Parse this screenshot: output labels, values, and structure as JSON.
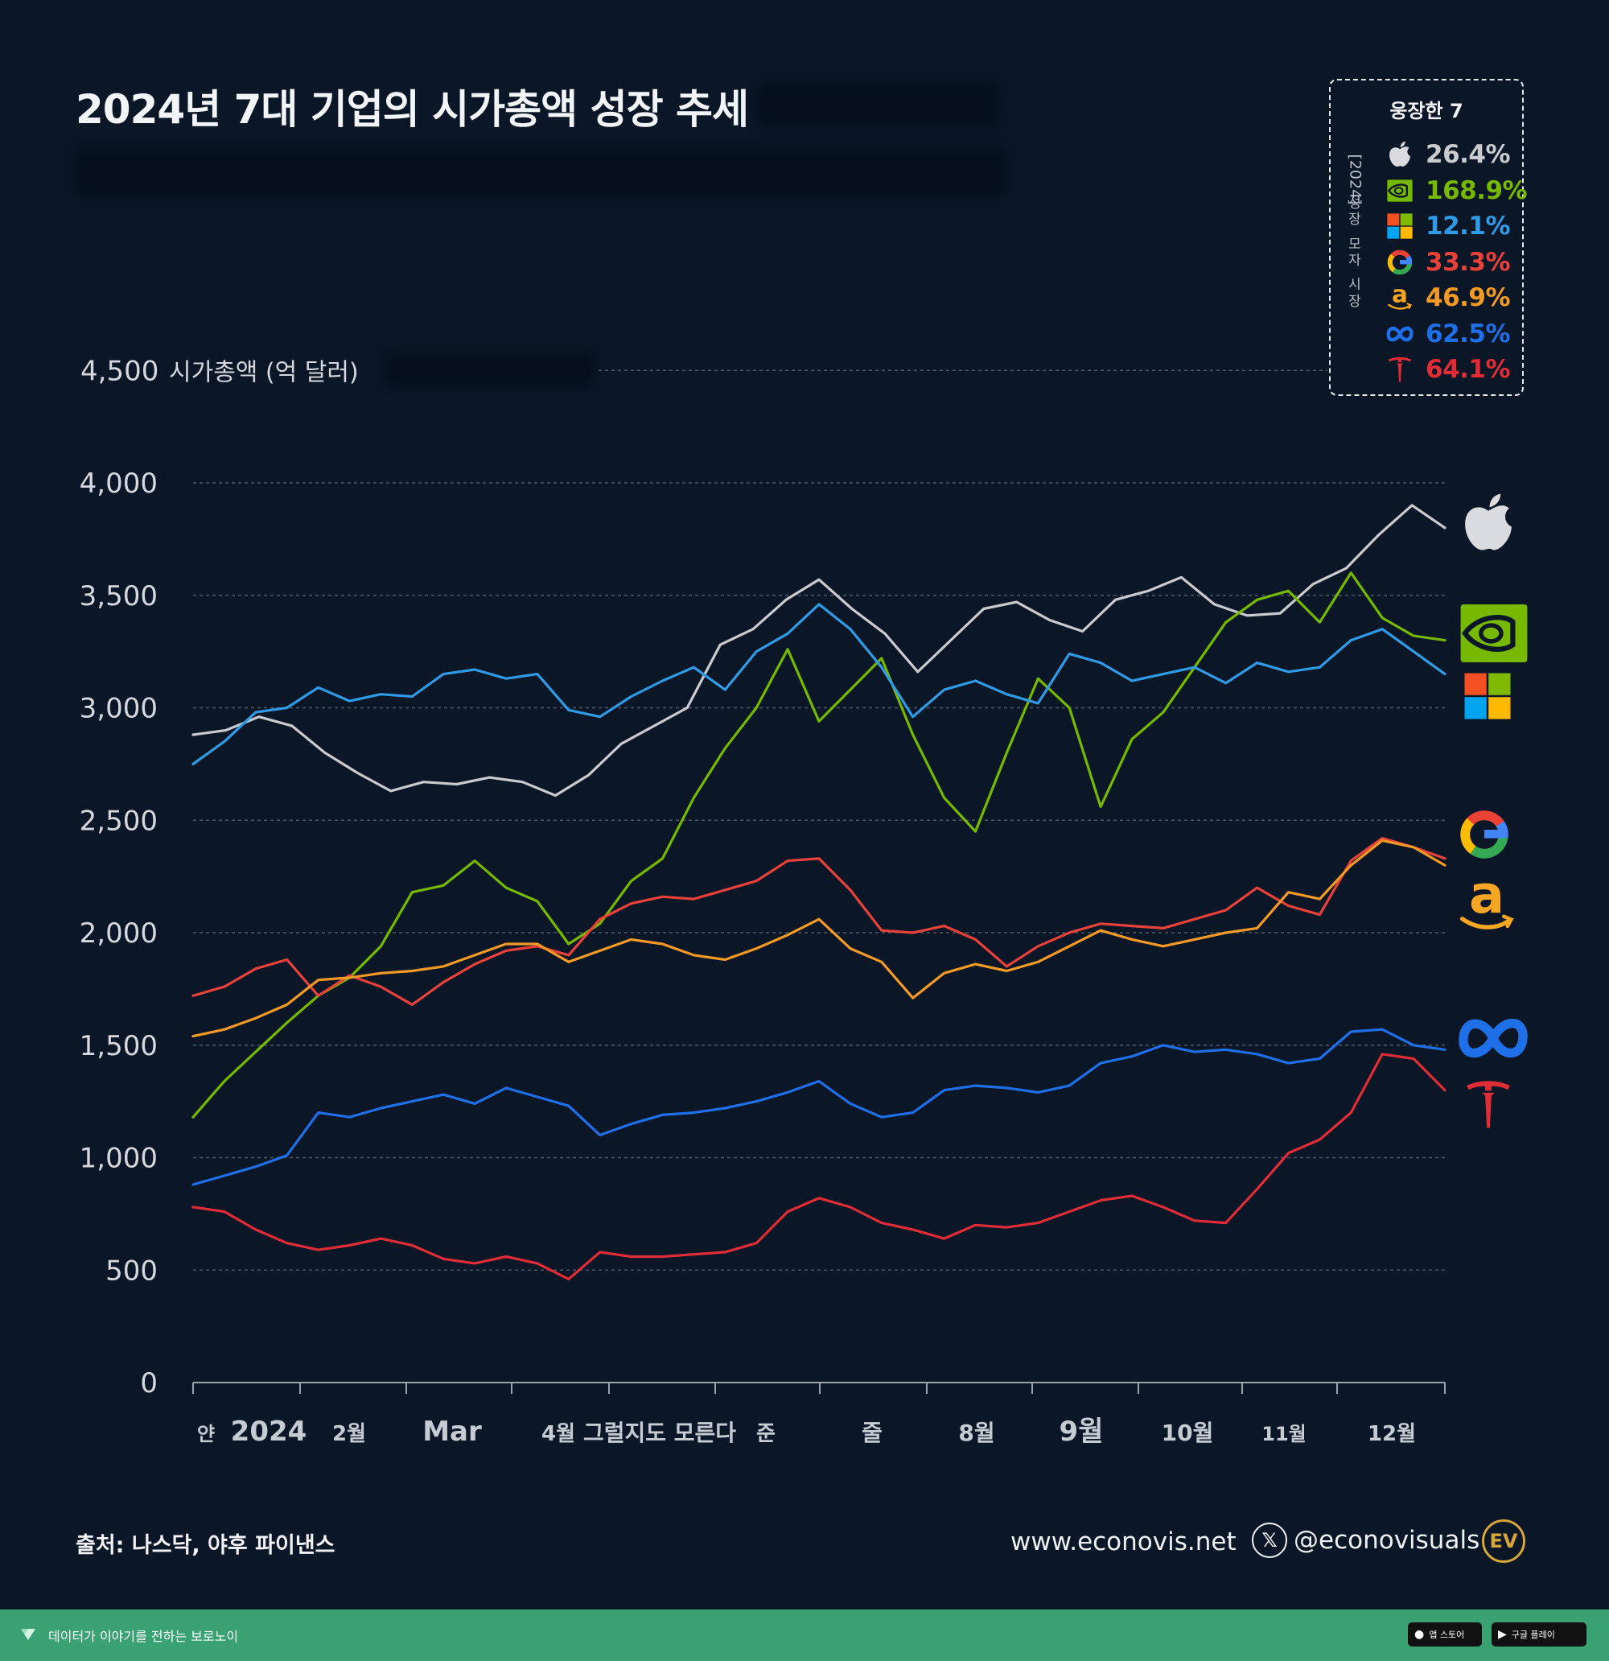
{
  "title": "2024년 7대 기업의 시가총액 성장 추세",
  "legend": {
    "title": "웅장한 7",
    "side_year": "[2024]",
    "side_words": [
      "성장",
      "모자",
      "시장"
    ],
    "items": [
      {
        "icon": "apple-icon",
        "value": "26.4%",
        "color": "#c9cbcf"
      },
      {
        "icon": "nvidia-icon",
        "value": "168.9%",
        "color": "#76b900"
      },
      {
        "icon": "microsoft-icon",
        "value": "12.1%",
        "color": "#2f9be6"
      },
      {
        "icon": "google-icon",
        "value": "33.3%",
        "color": "#e8413a"
      },
      {
        "icon": "amazon-icon",
        "value": "46.9%",
        "color": "#f39a26"
      },
      {
        "icon": "meta-icon",
        "value": "62.5%",
        "color": "#1e6fe8"
      },
      {
        "icon": "tesla-icon",
        "value": "64.1%",
        "color": "#e02c36"
      }
    ]
  },
  "footer": {
    "source": "출처: 나스닥, 야후 파이낸스",
    "website": "www.econovis.net",
    "x_glyph": "𝕏",
    "handle": "@econovisuals",
    "logo": "EV"
  },
  "bottombar": {
    "slogan": "데이터가 이야기를 전하는 보로노이",
    "badges": [
      "앱 스토어",
      "구글 플레이"
    ]
  },
  "chart_data": {
    "type": "line",
    "ylabel": "시가총액 (억 달러)",
    "ylim": [
      0,
      4500
    ],
    "yticks": [
      0,
      500,
      1000,
      1500,
      2000,
      2500,
      3000,
      3500,
      4000,
      4500
    ],
    "ytick_labels": [
      "0",
      "500",
      "1,000",
      "1,500",
      "2,000",
      "2,500",
      "3,000",
      "3,500",
      "4,000",
      "4,500"
    ],
    "x_tick_labels": [
      "얀",
      "2024",
      "2월",
      "Mar",
      "4월",
      "그럴지도 모른다",
      "준",
      "줄",
      "8월",
      "9월",
      "10월",
      "11월",
      "12월"
    ],
    "grid": true,
    "series": [
      {
        "name": "Apple",
        "icon": "apple-icon",
        "color": "#c9cbcf",
        "values": [
          2880,
          2900,
          2960,
          2920,
          2800,
          2710,
          2630,
          2670,
          2660,
          2690,
          2670,
          2610,
          2700,
          2840,
          2920,
          3000,
          3280,
          3350,
          3480,
          3570,
          3440,
          3330,
          3160,
          3300,
          3440,
          3470,
          3390,
          3340,
          3480,
          3520,
          3580,
          3460,
          3410,
          3420,
          3550,
          3620,
          3770,
          3900,
          3800
        ]
      },
      {
        "name": "NVIDIA",
        "icon": "nvidia-icon",
        "color": "#76b900",
        "values": [
          1180,
          1340,
          1470,
          1600,
          1720,
          1800,
          1940,
          2180,
          2210,
          2320,
          2200,
          2140,
          1950,
          2040,
          2230,
          2330,
          2600,
          2820,
          3000,
          3260,
          2940,
          3080,
          3220,
          2880,
          2600,
          2450,
          2800,
          3130,
          3000,
          2560,
          2860,
          2980,
          3180,
          3380,
          3480,
          3520,
          3380,
          3600,
          3400,
          3320,
          3300
        ]
      },
      {
        "name": "Microsoft",
        "icon": "microsoft-icon",
        "color": "#2f9be6",
        "values": [
          2750,
          2850,
          2980,
          3000,
          3090,
          3030,
          3060,
          3050,
          3150,
          3170,
          3130,
          3150,
          2990,
          2960,
          3050,
          3120,
          3180,
          3080,
          3250,
          3330,
          3460,
          3350,
          3180,
          2960,
          3080,
          3120,
          3060,
          3020,
          3240,
          3200,
          3120,
          3150,
          3180,
          3110,
          3200,
          3160,
          3180,
          3300,
          3350,
          3250,
          3150
        ]
      },
      {
        "name": "Google",
        "icon": "google-icon",
        "color": "#e8413a",
        "values": [
          1720,
          1760,
          1840,
          1880,
          1720,
          1810,
          1760,
          1680,
          1780,
          1860,
          1920,
          1940,
          1900,
          2060,
          2130,
          2160,
          2150,
          2190,
          2230,
          2320,
          2330,
          2190,
          2010,
          2000,
          2030,
          1970,
          1850,
          1940,
          2000,
          2040,
          2030,
          2020,
          2060,
          2100,
          2200,
          2120,
          2080,
          2320,
          2420,
          2380,
          2330
        ]
      },
      {
        "name": "Amazon",
        "icon": "amazon-icon",
        "color": "#f39a26",
        "values": [
          1540,
          1570,
          1620,
          1680,
          1790,
          1800,
          1820,
          1830,
          1850,
          1900,
          1950,
          1950,
          1870,
          1920,
          1970,
          1950,
          1900,
          1880,
          1930,
          1990,
          2060,
          1930,
          1870,
          1710,
          1820,
          1860,
          1830,
          1870,
          1940,
          2010,
          1970,
          1940,
          1970,
          2000,
          2020,
          2180,
          2150,
          2300,
          2410,
          2380,
          2300
        ]
      },
      {
        "name": "Meta",
        "icon": "meta-icon",
        "color": "#1e6fe8",
        "values": [
          880,
          920,
          960,
          1010,
          1200,
          1180,
          1220,
          1250,
          1280,
          1240,
          1310,
          1270,
          1230,
          1100,
          1150,
          1190,
          1200,
          1220,
          1250,
          1290,
          1340,
          1240,
          1180,
          1200,
          1300,
          1320,
          1310,
          1290,
          1320,
          1420,
          1450,
          1500,
          1470,
          1480,
          1460,
          1420,
          1440,
          1560,
          1570,
          1500,
          1480
        ]
      },
      {
        "name": "Tesla",
        "icon": "tesla-icon",
        "color": "#e02c36",
        "values": [
          780,
          760,
          680,
          620,
          590,
          610,
          640,
          610,
          550,
          530,
          560,
          530,
          460,
          580,
          560,
          560,
          570,
          580,
          620,
          760,
          820,
          780,
          710,
          680,
          640,
          700,
          690,
          710,
          760,
          810,
          830,
          780,
          720,
          710,
          860,
          1020,
          1080,
          1200,
          1460,
          1440,
          1300
        ]
      }
    ]
  }
}
